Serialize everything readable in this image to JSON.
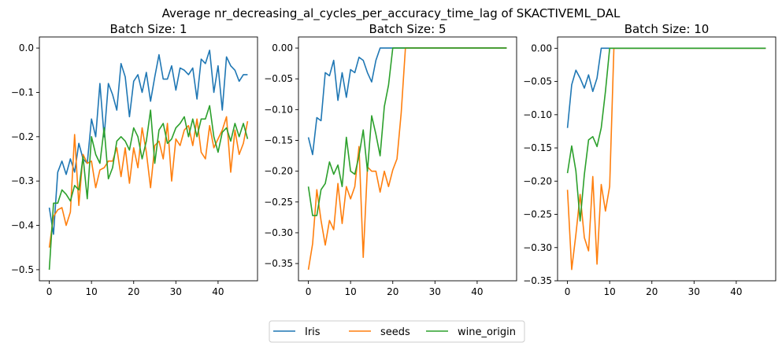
{
  "figure": {
    "suptitle": "Average nr_decreasing_al_cycles_per_accuracy_time_lag of SKACTIVEML_DAL"
  },
  "legend": {
    "entries": [
      "Iris",
      "seeds",
      "wine_origin"
    ]
  },
  "colors": {
    "Iris": "#1f77b4",
    "seeds": "#ff7f0e",
    "wine_origin": "#2ca02c"
  },
  "chart_data": [
    {
      "type": "line",
      "title": "Batch Size: 1",
      "xlabel": "",
      "ylabel": "",
      "xlim": [
        -2.35,
        49.35
      ],
      "ylim": [
        -0.525,
        0.025
      ],
      "xticks": [
        0,
        10,
        20,
        30,
        40
      ],
      "yticks": [
        -0.5,
        -0.4,
        -0.3,
        -0.2,
        -0.1,
        0.0
      ],
      "ytick_labels": [
        "−0.5",
        "−0.4",
        "−0.3",
        "−0.2",
        "−0.1",
        "0.0"
      ],
      "series": [
        {
          "name": "Iris",
          "values": [
            -0.36,
            -0.42,
            -0.28,
            -0.255,
            -0.285,
            -0.25,
            -0.28,
            -0.215,
            -0.25,
            -0.26,
            -0.16,
            -0.2,
            -0.08,
            -0.2,
            -0.08,
            -0.105,
            -0.14,
            -0.035,
            -0.065,
            -0.155,
            -0.075,
            -0.06,
            -0.1,
            -0.055,
            -0.12,
            -0.065,
            -0.015,
            -0.07,
            -0.07,
            -0.04,
            -0.095,
            -0.045,
            -0.05,
            -0.06,
            -0.045,
            -0.115,
            -0.025,
            -0.035,
            -0.005,
            -0.1,
            -0.04,
            -0.14,
            -0.02,
            -0.04,
            -0.05,
            -0.075,
            -0.06,
            -0.06
          ]
        },
        {
          "name": "seeds",
          "values": [
            -0.45,
            -0.38,
            -0.365,
            -0.36,
            -0.4,
            -0.37,
            -0.195,
            -0.355,
            -0.24,
            -0.26,
            -0.255,
            -0.315,
            -0.275,
            -0.27,
            -0.255,
            -0.255,
            -0.225,
            -0.29,
            -0.225,
            -0.305,
            -0.225,
            -0.27,
            -0.18,
            -0.235,
            -0.315,
            -0.22,
            -0.21,
            -0.25,
            -0.17,
            -0.3,
            -0.205,
            -0.22,
            -0.185,
            -0.175,
            -0.22,
            -0.16,
            -0.235,
            -0.25,
            -0.175,
            -0.225,
            -0.205,
            -0.185,
            -0.155,
            -0.28,
            -0.185,
            -0.24,
            -0.215,
            -0.165
          ]
        },
        {
          "name": "wine_origin",
          "values": [
            -0.5,
            -0.35,
            -0.35,
            -0.32,
            -0.33,
            -0.345,
            -0.31,
            -0.32,
            -0.245,
            -0.34,
            -0.2,
            -0.24,
            -0.26,
            -0.18,
            -0.295,
            -0.27,
            -0.21,
            -0.2,
            -0.21,
            -0.23,
            -0.18,
            -0.2,
            -0.25,
            -0.21,
            -0.14,
            -0.26,
            -0.185,
            -0.17,
            -0.215,
            -0.205,
            -0.18,
            -0.17,
            -0.155,
            -0.2,
            -0.16,
            -0.2,
            -0.16,
            -0.16,
            -0.13,
            -0.2,
            -0.235,
            -0.19,
            -0.18,
            -0.21,
            -0.17,
            -0.2,
            -0.17,
            -0.205
          ]
        }
      ]
    },
    {
      "type": "line",
      "title": "Batch Size: 5",
      "xlabel": "",
      "ylabel": "",
      "xlim": [
        -2.35,
        49.35
      ],
      "ylim": [
        -0.378,
        0.018
      ],
      "xticks": [
        0,
        10,
        20,
        30,
        40
      ],
      "yticks": [
        -0.35,
        -0.3,
        -0.25,
        -0.2,
        -0.15,
        -0.1,
        -0.05,
        0.0
      ],
      "ytick_labels": [
        "−0.35",
        "−0.30",
        "−0.25",
        "−0.20",
        "−0.15",
        "−0.10",
        "−0.05",
        "0.00"
      ],
      "series": [
        {
          "name": "Iris",
          "values": [
            -0.145,
            -0.173,
            -0.113,
            -0.118,
            -0.04,
            -0.045,
            -0.02,
            -0.085,
            -0.04,
            -0.08,
            -0.035,
            -0.04,
            -0.015,
            -0.02,
            -0.04,
            -0.055,
            -0.02,
            0,
            0,
            0,
            0,
            0,
            0,
            0,
            0,
            0,
            0,
            0,
            0,
            0,
            0,
            0,
            0,
            0,
            0,
            0,
            0,
            0,
            0,
            0,
            0,
            0,
            0,
            0,
            0,
            0,
            0,
            0
          ]
        },
        {
          "name": "seeds",
          "values": [
            -0.36,
            -0.318,
            -0.23,
            -0.28,
            -0.32,
            -0.28,
            -0.295,
            -0.22,
            -0.285,
            -0.225,
            -0.245,
            -0.225,
            -0.16,
            -0.34,
            -0.193,
            -0.2,
            -0.2,
            -0.234,
            -0.2,
            -0.225,
            -0.198,
            -0.18,
            -0.105,
            0,
            0,
            0,
            0,
            0,
            0,
            0,
            0,
            0,
            0,
            0,
            0,
            0,
            0,
            0,
            0,
            0,
            0,
            0,
            0,
            0,
            0,
            0,
            0,
            0
          ]
        },
        {
          "name": "wine_origin",
          "values": [
            -0.225,
            -0.272,
            -0.272,
            -0.23,
            -0.22,
            -0.185,
            -0.205,
            -0.19,
            -0.225,
            -0.145,
            -0.2,
            -0.205,
            -0.175,
            -0.133,
            -0.2,
            -0.11,
            -0.14,
            -0.175,
            -0.095,
            -0.06,
            0,
            0,
            0,
            0,
            0,
            0,
            0,
            0,
            0,
            0,
            0,
            0,
            0,
            0,
            0,
            0,
            0,
            0,
            0,
            0,
            0,
            0,
            0,
            0,
            0,
            0,
            0,
            0
          ]
        }
      ]
    },
    {
      "type": "line",
      "title": "Batch Size: 10",
      "xlabel": "",
      "ylabel": "",
      "xlim": [
        -2.35,
        49.35
      ],
      "ylim": [
        -0.35,
        0.017
      ],
      "xticks": [
        0,
        10,
        20,
        30,
        40
      ],
      "yticks": [
        -0.35,
        -0.3,
        -0.25,
        -0.2,
        -0.15,
        -0.1,
        -0.05,
        0.0
      ],
      "ytick_labels": [
        "−0.35",
        "−0.30",
        "−0.25",
        "−0.20",
        "−0.15",
        "−0.10",
        "−0.05",
        "0.00"
      ],
      "series": [
        {
          "name": "Iris",
          "values": [
            -0.12,
            -0.055,
            -0.033,
            -0.045,
            -0.06,
            -0.04,
            -0.065,
            -0.045,
            0,
            0,
            0,
            0,
            0,
            0,
            0,
            0,
            0,
            0,
            0,
            0,
            0,
            0,
            0,
            0,
            0,
            0,
            0,
            0,
            0,
            0,
            0,
            0,
            0,
            0,
            0,
            0,
            0,
            0,
            0,
            0,
            0,
            0,
            0,
            0,
            0,
            0,
            0,
            0
          ]
        },
        {
          "name": "seeds",
          "values": [
            -0.213,
            -0.333,
            -0.28,
            -0.22,
            -0.285,
            -0.305,
            -0.193,
            -0.325,
            -0.205,
            -0.245,
            -0.208,
            0,
            0,
            0,
            0,
            0,
            0,
            0,
            0,
            0,
            0,
            0,
            0,
            0,
            0,
            0,
            0,
            0,
            0,
            0,
            0,
            0,
            0,
            0,
            0,
            0,
            0,
            0,
            0,
            0,
            0,
            0,
            0,
            0,
            0,
            0,
            0,
            0
          ]
        },
        {
          "name": "wine_origin",
          "values": [
            -0.188,
            -0.147,
            -0.185,
            -0.26,
            -0.19,
            -0.138,
            -0.133,
            -0.148,
            -0.12,
            -0.065,
            0,
            0,
            0,
            0,
            0,
            0,
            0,
            0,
            0,
            0,
            0,
            0,
            0,
            0,
            0,
            0,
            0,
            0,
            0,
            0,
            0,
            0,
            0,
            0,
            0,
            0,
            0,
            0,
            0,
            0,
            0,
            0,
            0,
            0,
            0,
            0,
            0,
            0
          ]
        }
      ]
    }
  ]
}
